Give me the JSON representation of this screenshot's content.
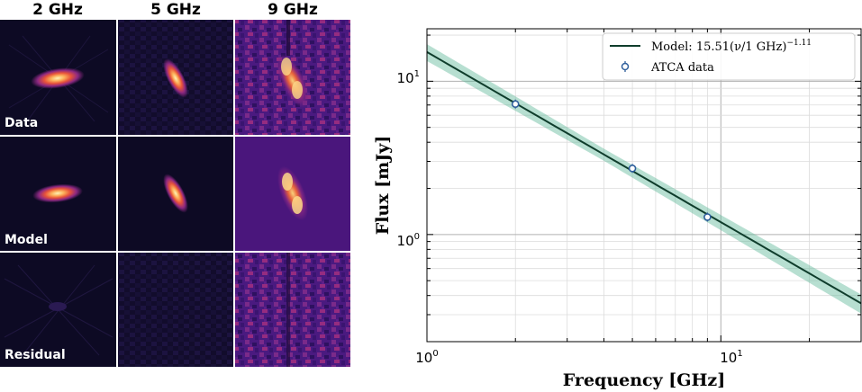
{
  "panel_grid": {
    "columns": [
      "2 GHz",
      "5 GHz",
      "9 GHz"
    ],
    "rows": [
      "Data",
      "Model",
      "Residual"
    ],
    "colormap": "magma",
    "colors": {
      "background_dark": "#0d0a24",
      "purple": "#4a167c",
      "magenta": "#9c2c83",
      "orange": "#f98c34",
      "yellow": "#fde6a5",
      "separator": "#d8d8d8"
    }
  },
  "chart_data": {
    "type": "line",
    "xscale": "log",
    "yscale": "log",
    "xlim": [
      1,
      30
    ],
    "ylim": [
      0.2,
      22
    ],
    "xlabel": "Frequency [GHz]",
    "ylabel": "Flux [mJy]",
    "x_tick_labels": [
      {
        "value": 1,
        "label": "10",
        "exp": "0"
      },
      {
        "value": 10,
        "label": "10",
        "exp": "1"
      }
    ],
    "y_tick_labels": [
      {
        "value": 1,
        "label": "10",
        "exp": "0"
      },
      {
        "value": 10,
        "label": "10",
        "exp": "1"
      }
    ],
    "grid": true,
    "legend_position": "top-right",
    "model": {
      "amplitude": 15.51,
      "index": -1.11,
      "band_frac": 0.15,
      "legend_label": "Model: 15.51(ν/1 GHz)",
      "legend_exponent": "−1.11",
      "line_color": "#0f3d2c",
      "band_color": "#5fb89a"
    },
    "data_series": {
      "name": "ATCA data",
      "x": [
        2.0,
        5.0,
        9.0
      ],
      "y": [
        7.1,
        2.7,
        1.3
      ],
      "marker_color": "#2f5f9c",
      "marker_fill": "#ffffff"
    }
  }
}
